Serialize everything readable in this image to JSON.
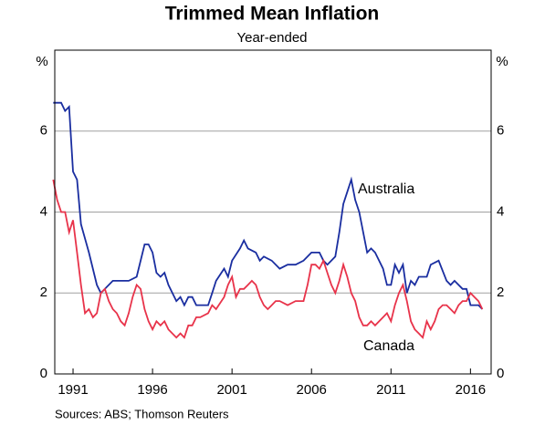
{
  "chart_data": {
    "type": "line",
    "title": "Trimmed Mean Inflation",
    "subtitle": "Year-ended",
    "ylabel": "%",
    "y2label": "%",
    "source": "Sources: ABS; Thomson Reuters",
    "xlim": [
      1989.85,
      2017.3
    ],
    "xticks": [
      1991,
      1996,
      2001,
      2006,
      2011,
      2016
    ],
    "ylim": [
      0,
      8
    ],
    "yticks": [
      0,
      2,
      4,
      6
    ],
    "y2lim": [
      0,
      8
    ],
    "y2ticks": [
      0,
      2,
      4,
      6
    ],
    "grid": true,
    "series": [
      {
        "name": "Australia",
        "color": "#1a2ea0",
        "x": [
          1989.75,
          1990,
          1990.25,
          1990.5,
          1990.75,
          1991,
          1991.25,
          1991.5,
          1992,
          1992.5,
          1992.75,
          1993,
          1993.5,
          1994,
          1994.5,
          1995,
          1995.5,
          1995.75,
          1996,
          1996.25,
          1996.5,
          1996.75,
          1997,
          1997.5,
          1997.75,
          1998,
          1998.25,
          1998.5,
          1998.75,
          1999.5,
          1999.75,
          2000,
          2000.5,
          2000.75,
          2001,
          2001.5,
          2001.75,
          2002,
          2002.5,
          2002.75,
          2003,
          2003.5,
          2004,
          2004.5,
          2005,
          2005.5,
          2006,
          2006.5,
          2006.75,
          2007,
          2007.5,
          2007.75,
          2008,
          2008.5,
          2008.75,
          2009,
          2009.5,
          2009.75,
          2010,
          2010.5,
          2010.75,
          2011,
          2011.25,
          2011.5,
          2011.75,
          2012,
          2012.25,
          2012.5,
          2012.75,
          2013.25,
          2013.5,
          2014,
          2014.5,
          2014.75,
          2015,
          2015.5,
          2015.75,
          2016,
          2016.5,
          2016.75
        ],
        "values": [
          6.7,
          6.7,
          6.7,
          6.5,
          6.6,
          5.0,
          4.8,
          3.7,
          3.0,
          2.2,
          2.0,
          2.1,
          2.3,
          2.3,
          2.3,
          2.4,
          3.2,
          3.2,
          3.0,
          2.5,
          2.4,
          2.5,
          2.2,
          1.8,
          1.9,
          1.7,
          1.9,
          1.9,
          1.7,
          1.7,
          2.0,
          2.3,
          2.6,
          2.4,
          2.8,
          3.1,
          3.3,
          3.1,
          3.0,
          2.8,
          2.9,
          2.8,
          2.6,
          2.7,
          2.7,
          2.8,
          3.0,
          3.0,
          2.8,
          2.7,
          2.9,
          3.5,
          4.2,
          4.8,
          4.3,
          4.0,
          3.0,
          3.1,
          3.0,
          2.6,
          2.2,
          2.2,
          2.7,
          2.5,
          2.7,
          2.0,
          2.3,
          2.2,
          2.4,
          2.4,
          2.7,
          2.8,
          2.3,
          2.2,
          2.3,
          2.1,
          2.1,
          1.7,
          1.7,
          1.6
        ]
      },
      {
        "name": "Canada",
        "color": "#e8334a",
        "x": [
          1989.75,
          1990,
          1990.25,
          1990.5,
          1990.75,
          1991,
          1991.25,
          1991.5,
          1991.75,
          1992,
          1992.25,
          1992.5,
          1992.75,
          1993,
          1993.25,
          1993.5,
          1993.75,
          1994,
          1994.25,
          1994.5,
          1994.75,
          1995,
          1995.25,
          1995.5,
          1995.75,
          1996,
          1996.25,
          1996.5,
          1996.75,
          1997,
          1997.5,
          1997.75,
          1998,
          1998.25,
          1998.5,
          1998.75,
          1999,
          1999.5,
          1999.75,
          2000,
          2000.5,
          2000.75,
          2001,
          2001.25,
          2001.5,
          2001.75,
          2002,
          2002.25,
          2002.5,
          2002.75,
          2003,
          2003.25,
          2003.5,
          2003.75,
          2004,
          2004.5,
          2005,
          2005.5,
          2005.75,
          2006,
          2006.25,
          2006.5,
          2006.75,
          2007,
          2007.25,
          2007.5,
          2007.75,
          2008,
          2008.25,
          2008.5,
          2008.75,
          2009,
          2009.25,
          2009.5,
          2009.75,
          2010,
          2010.5,
          2010.75,
          2011,
          2011.25,
          2011.5,
          2011.75,
          2012,
          2012.25,
          2012.5,
          2012.75,
          2013,
          2013.25,
          2013.5,
          2013.75,
          2014,
          2014.25,
          2014.5,
          2014.75,
          2015,
          2015.25,
          2015.5,
          2015.75,
          2016,
          2016.25,
          2016.5,
          2016.75
        ],
        "values": [
          4.8,
          4.3,
          4.0,
          4.0,
          3.5,
          3.8,
          3.0,
          2.2,
          1.5,
          1.6,
          1.4,
          1.5,
          2.0,
          2.1,
          1.8,
          1.6,
          1.5,
          1.3,
          1.2,
          1.5,
          1.9,
          2.2,
          2.1,
          1.6,
          1.3,
          1.1,
          1.3,
          1.2,
          1.3,
          1.1,
          0.9,
          1.0,
          0.9,
          1.2,
          1.2,
          1.4,
          1.4,
          1.5,
          1.7,
          1.6,
          1.9,
          2.2,
          2.4,
          1.9,
          2.1,
          2.1,
          2.2,
          2.3,
          2.2,
          1.9,
          1.7,
          1.6,
          1.7,
          1.8,
          1.8,
          1.7,
          1.8,
          1.8,
          2.2,
          2.7,
          2.7,
          2.6,
          2.8,
          2.5,
          2.2,
          2.0,
          2.3,
          2.7,
          2.4,
          2.0,
          1.8,
          1.4,
          1.2,
          1.2,
          1.3,
          1.2,
          1.4,
          1.5,
          1.3,
          1.7,
          2.0,
          2.2,
          1.8,
          1.3,
          1.1,
          1.0,
          0.9,
          1.3,
          1.1,
          1.3,
          1.6,
          1.7,
          1.7,
          1.6,
          1.5,
          1.7,
          1.8,
          1.8,
          2.0,
          1.9,
          1.8,
          1.6
        ]
      }
    ]
  }
}
